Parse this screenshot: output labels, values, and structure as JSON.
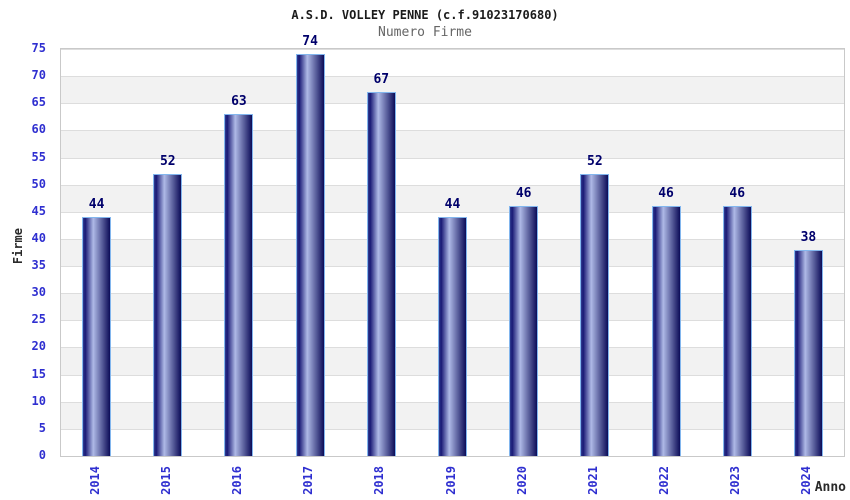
{
  "chart_data": {
    "type": "bar",
    "title": "A.S.D. VOLLEY PENNE (c.f.91023170680)",
    "subtitle": "Numero Firme",
    "ylabel": "Firme",
    "xlabel": "Anno",
    "categories": [
      "2014",
      "2015",
      "2016",
      "2017",
      "2018",
      "2019",
      "2020",
      "2021",
      "2022",
      "2023",
      "2024"
    ],
    "values": [
      44,
      52,
      63,
      74,
      67,
      44,
      46,
      52,
      46,
      46,
      38
    ],
    "ylim": [
      0,
      75
    ],
    "ytick_step": 5,
    "yticks": [
      0,
      5,
      10,
      15,
      20,
      25,
      30,
      35,
      40,
      45,
      50,
      55,
      60,
      65,
      70,
      75
    ],
    "grid": true,
    "legend": "none",
    "colors": {
      "bar_gradient_edge_start": "#323f93",
      "bar_gradient_dark": "#181874",
      "bar_gradient_light": "#aeb9e6",
      "bar_gradient_end": "#0c0c58",
      "bar_border": "#82b6ee",
      "value_label": "#00006b",
      "tick_label": "#2f2fd0",
      "title": "#1b1b1b",
      "subtitle": "#666666",
      "axis_title": "#2a2a2a",
      "band_alt": "#f2f2f2",
      "band_main": "#ffffff",
      "gridline": "#dddddd",
      "plot_border": "#c9c9c9",
      "background": "#ffffff"
    }
  }
}
